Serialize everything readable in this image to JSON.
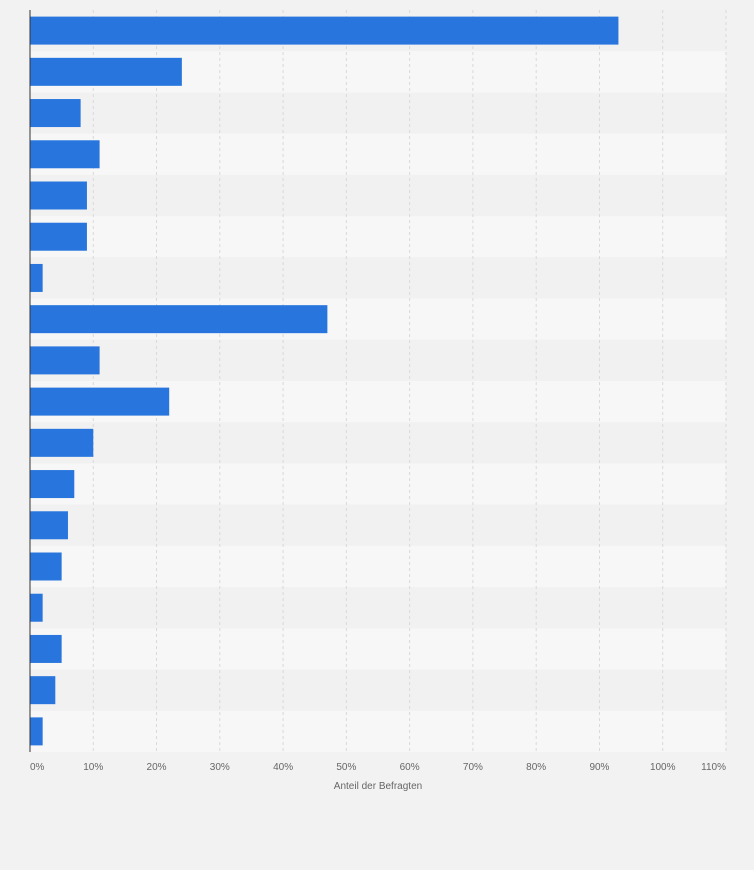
{
  "chart_data": {
    "type": "bar",
    "orientation": "horizontal",
    "categories": [
      "",
      "",
      "",
      "",
      "",
      "",
      "",
      "",
      "",
      "",
      "",
      "",
      "",
      "",
      "",
      "",
      "",
      ""
    ],
    "values": [
      93,
      24,
      8,
      11,
      9,
      9,
      2,
      47,
      11,
      22,
      10,
      7,
      6,
      5,
      2,
      5,
      4,
      2
    ],
    "xlabel": "Anteil der Befragten",
    "ylabel": "",
    "xlim": [
      0,
      110
    ],
    "xticks": [
      "0%",
      "10%",
      "20%",
      "30%",
      "40%",
      "50%",
      "60%",
      "70%",
      "80%",
      "90%",
      "100%",
      "110%"
    ],
    "grid": true,
    "legend": "none",
    "colors": {
      "bar": "#2876dd",
      "band_dark": "#f1f1f1",
      "band_light": "#f7f7f7",
      "grid": "#d9d9d9",
      "axis": "#333333",
      "background": "#f2f2f2"
    }
  }
}
